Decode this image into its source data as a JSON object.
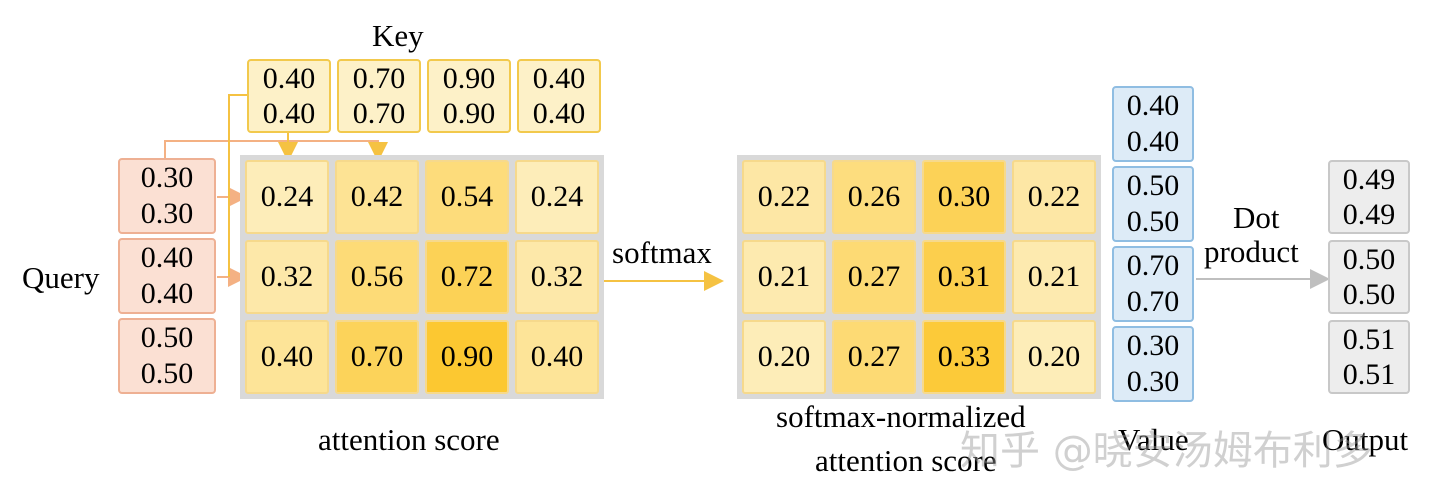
{
  "labels": {
    "key": "Key",
    "query": "Query",
    "softmax": "softmax",
    "attention_score": "attention score",
    "normalized_line1": "softmax-normalized",
    "normalized_line2": "attention score",
    "dot_line1": "Dot",
    "dot_line2": "product",
    "value": "Value",
    "output": "Output"
  },
  "watermark": "知乎 @晓安汤姆布利多",
  "key_vectors": [
    [
      "0.40",
      "0.40"
    ],
    [
      "0.70",
      "0.70"
    ],
    [
      "0.90",
      "0.90"
    ],
    [
      "0.40",
      "0.40"
    ]
  ],
  "query_vectors": [
    [
      "0.30",
      "0.30"
    ],
    [
      "0.40",
      "0.40"
    ],
    [
      "0.50",
      "0.50"
    ]
  ],
  "value_vectors": [
    [
      "0.40",
      "0.40"
    ],
    [
      "0.50",
      "0.50"
    ],
    [
      "0.70",
      "0.70"
    ],
    [
      "0.30",
      "0.30"
    ]
  ],
  "output_vectors": [
    [
      "0.49",
      "0.49"
    ],
    [
      "0.50",
      "0.50"
    ],
    [
      "0.51",
      "0.51"
    ]
  ],
  "attention_scores": [
    [
      "0.24",
      "0.42",
      "0.54",
      "0.24"
    ],
    [
      "0.32",
      "0.56",
      "0.72",
      "0.32"
    ],
    [
      "0.40",
      "0.70",
      "0.90",
      "0.40"
    ]
  ],
  "normalized_scores": [
    [
      "0.22",
      "0.26",
      "0.30",
      "0.22"
    ],
    [
      "0.21",
      "0.27",
      "0.31",
      "0.21"
    ],
    [
      "0.20",
      "0.27",
      "0.33",
      "0.20"
    ]
  ],
  "colors": {
    "key_fill": "#fdf1c8",
    "key_border": "#f2c94c",
    "query_fill": "#fbe0d3",
    "query_border": "#eeb093",
    "value_fill": "#ddebf7",
    "value_border": "#8fbde2",
    "output_fill": "#ededed",
    "output_border": "#c8c8c8",
    "arrow_orange": "#f4b183",
    "arrow_yellow": "#f5c242",
    "arrow_gray": "#bfbfbf"
  }
}
